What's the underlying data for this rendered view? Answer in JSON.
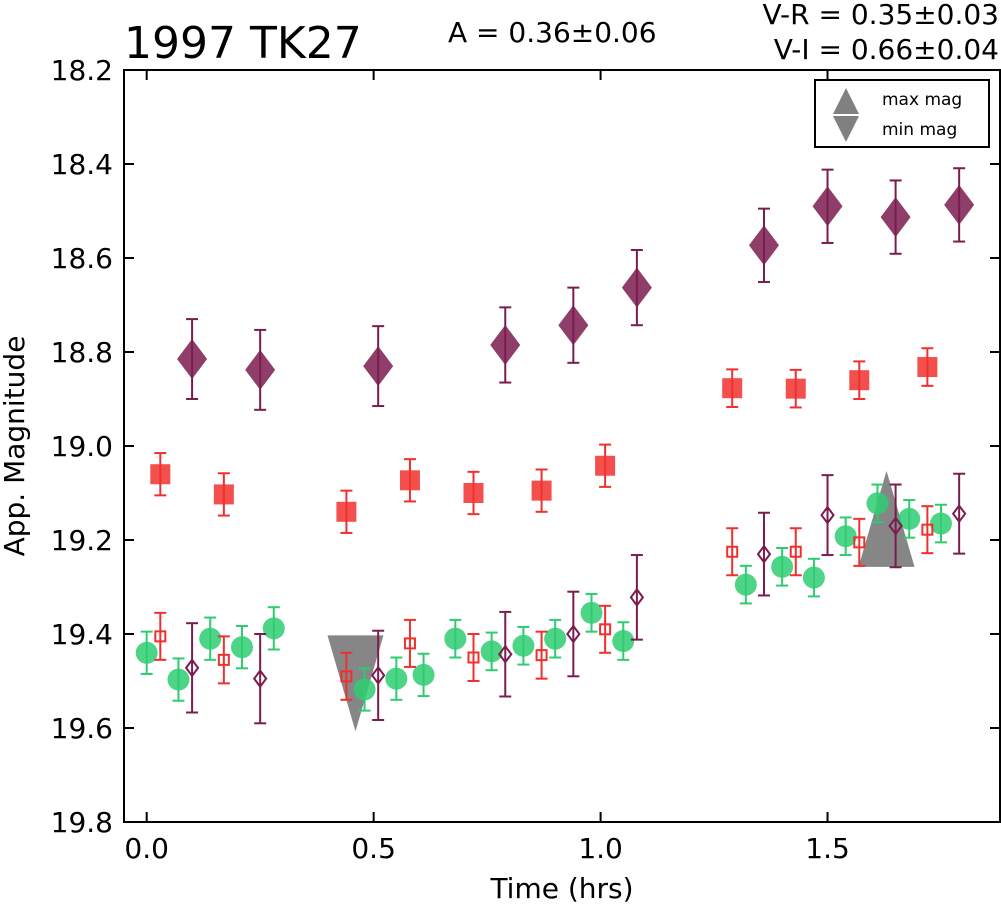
{
  "header": {
    "title": "1997 TK27",
    "amplitude": "A  = 0.36±0.06",
    "color_vr": "V-R = 0.35±0.03",
    "color_vi": "V-I  = 0.66±0.04"
  },
  "chart_data": {
    "type": "scatter",
    "title": "1997 TK27",
    "xlabel": "Time (hrs)",
    "ylabel": "App. Magnitude",
    "xlim": [
      -0.05,
      1.88
    ],
    "ylim": [
      19.8,
      18.2
    ],
    "y_inverted": true,
    "grid": false,
    "x_ticks": [
      "0.0",
      "0.5",
      "1.0",
      "1.5"
    ],
    "x_tick_values": [
      0.0,
      0.5,
      1.0,
      1.5
    ],
    "y_ticks": [
      "18.2",
      "18.4",
      "18.6",
      "18.8",
      "19.0",
      "19.2",
      "19.4",
      "19.6",
      "19.8"
    ],
    "y_tick_values": [
      18.2,
      18.4,
      18.6,
      18.8,
      19.0,
      19.2,
      19.4,
      19.6,
      19.8
    ],
    "legend": {
      "position": "top-right",
      "entries": [
        {
          "label": "max mag",
          "marker": "triangle-up"
        },
        {
          "label": "min mag",
          "marker": "triangle-down"
        }
      ]
    },
    "series": [
      {
        "marker": "diamond-filled",
        "color": "#7b1c4f",
        "x": [
          0.1,
          0.25,
          0.51,
          0.79,
          0.94,
          1.08,
          1.36,
          1.5,
          1.65,
          1.79
        ],
        "y": [
          18.815,
          18.838,
          18.83,
          18.785,
          18.743,
          18.663,
          18.573,
          18.49,
          18.513,
          18.487
        ],
        "err": [
          0.085,
          0.085,
          0.085,
          0.08,
          0.08,
          0.08,
          0.078,
          0.078,
          0.078,
          0.078
        ]
      },
      {
        "marker": "square-filled",
        "color": "#f0302e",
        "x": [
          0.03,
          0.17,
          0.44,
          0.58,
          0.72,
          0.87,
          1.01,
          1.29,
          1.43,
          1.57,
          1.72
        ],
        "y": [
          19.06,
          19.103,
          19.14,
          19.073,
          19.1,
          19.095,
          19.042,
          18.877,
          18.878,
          18.86,
          18.832
        ],
        "err": [
          0.045,
          0.045,
          0.045,
          0.045,
          0.045,
          0.045,
          0.045,
          0.04,
          0.04,
          0.04,
          0.04
        ]
      },
      {
        "marker": "circle-filled",
        "color": "#2ecc71",
        "x": [
          0.0,
          0.07,
          0.14,
          0.21,
          0.28,
          0.48,
          0.55,
          0.61,
          0.68,
          0.76,
          0.83,
          0.9,
          0.98,
          1.05,
          1.32,
          1.4,
          1.47,
          1.54,
          1.61,
          1.68,
          1.75
        ],
        "y": [
          19.44,
          19.497,
          19.41,
          19.428,
          19.388,
          19.518,
          19.495,
          19.487,
          19.41,
          19.437,
          19.425,
          19.41,
          19.355,
          19.415,
          19.295,
          19.257,
          19.28,
          19.192,
          19.122,
          19.155,
          19.165
        ],
        "err": [
          0.045,
          0.045,
          0.045,
          0.045,
          0.045,
          0.045,
          0.045,
          0.045,
          0.04,
          0.04,
          0.04,
          0.04,
          0.04,
          0.04,
          0.04,
          0.04,
          0.04,
          0.04,
          0.04,
          0.04,
          0.04
        ]
      },
      {
        "marker": "square-open",
        "color": "#f0302e",
        "x": [
          0.03,
          0.17,
          0.44,
          0.58,
          0.72,
          0.87,
          1.01,
          1.29,
          1.43,
          1.57,
          1.72
        ],
        "y": [
          19.405,
          19.455,
          19.49,
          19.42,
          19.45,
          19.445,
          19.39,
          19.225,
          19.225,
          19.205,
          19.178
        ],
        "err": [
          0.05,
          0.05,
          0.05,
          0.05,
          0.05,
          0.05,
          0.05,
          0.05,
          0.05,
          0.05,
          0.05
        ]
      },
      {
        "marker": "diamond-open",
        "color": "#7b1c4f",
        "x": [
          0.1,
          0.25,
          0.51,
          0.79,
          0.94,
          1.08,
          1.36,
          1.5,
          1.65,
          1.79
        ],
        "y": [
          19.472,
          19.495,
          19.488,
          19.443,
          19.4,
          19.322,
          19.23,
          19.147,
          19.17,
          19.144
        ],
        "err": [
          0.095,
          0.095,
          0.095,
          0.09,
          0.09,
          0.09,
          0.088,
          0.085,
          0.088,
          0.085
        ]
      }
    ],
    "extrema": [
      {
        "label": "min mag",
        "marker": "triangle-down",
        "x": 0.46,
        "y": 19.505,
        "color": "#808080"
      },
      {
        "label": "max mag",
        "marker": "triangle-up",
        "x": 1.63,
        "y": 19.155,
        "color": "#808080"
      }
    ]
  }
}
